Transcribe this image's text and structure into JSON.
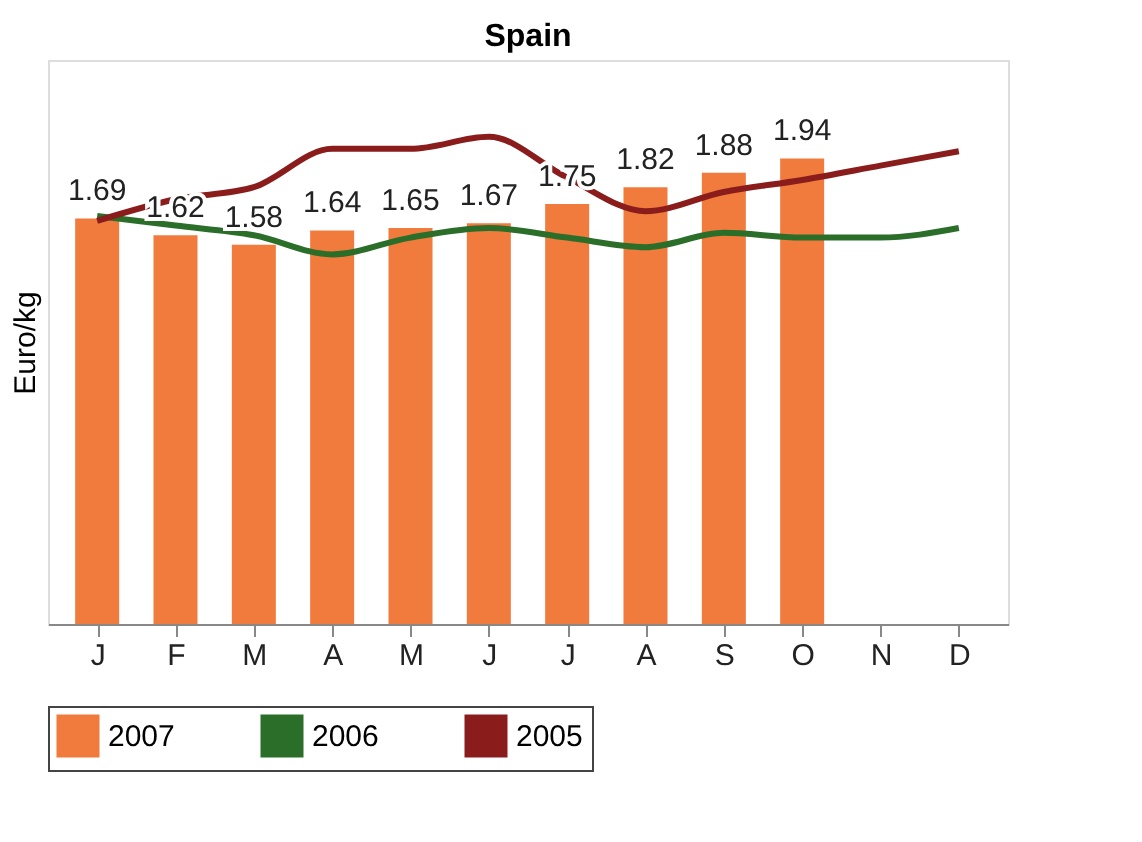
{
  "chart_data": {
    "type": "bar",
    "title": "Spain",
    "ylabel": "Euro/kg",
    "categories": [
      "J",
      "F",
      "M",
      "A",
      "M",
      "J",
      "J",
      "A",
      "S",
      "O",
      "N",
      "D"
    ],
    "ylim": [
      0,
      2.35
    ],
    "tick_labels": "x",
    "grid": false,
    "legend": "bottom",
    "series": [
      {
        "name": "2007",
        "color": "#f07b3c",
        "values": [
          1.69,
          1.62,
          1.58,
          1.64,
          1.65,
          1.67,
          1.75,
          1.82,
          1.88,
          1.94,
          null,
          null
        ],
        "value_labels": [
          "1.69",
          "1.62",
          "1.58",
          "1.64",
          "1.65",
          "1.67",
          "1.75",
          "1.82",
          "1.88",
          "1.94",
          null,
          null
        ]
      },
      {
        "name": "2006",
        "type": "line",
        "color": "#2a6e2a",
        "values": [
          1.7,
          1.66,
          1.62,
          1.54,
          1.61,
          1.65,
          1.61,
          1.57,
          1.63,
          1.61,
          1.61,
          1.65
        ]
      },
      {
        "name": "2005",
        "type": "line",
        "color": "#8b1c1c",
        "values": [
          1.68,
          1.77,
          1.82,
          1.98,
          1.98,
          2.03,
          1.86,
          1.72,
          1.8,
          1.85,
          1.91,
          1.97
        ]
      }
    ]
  }
}
